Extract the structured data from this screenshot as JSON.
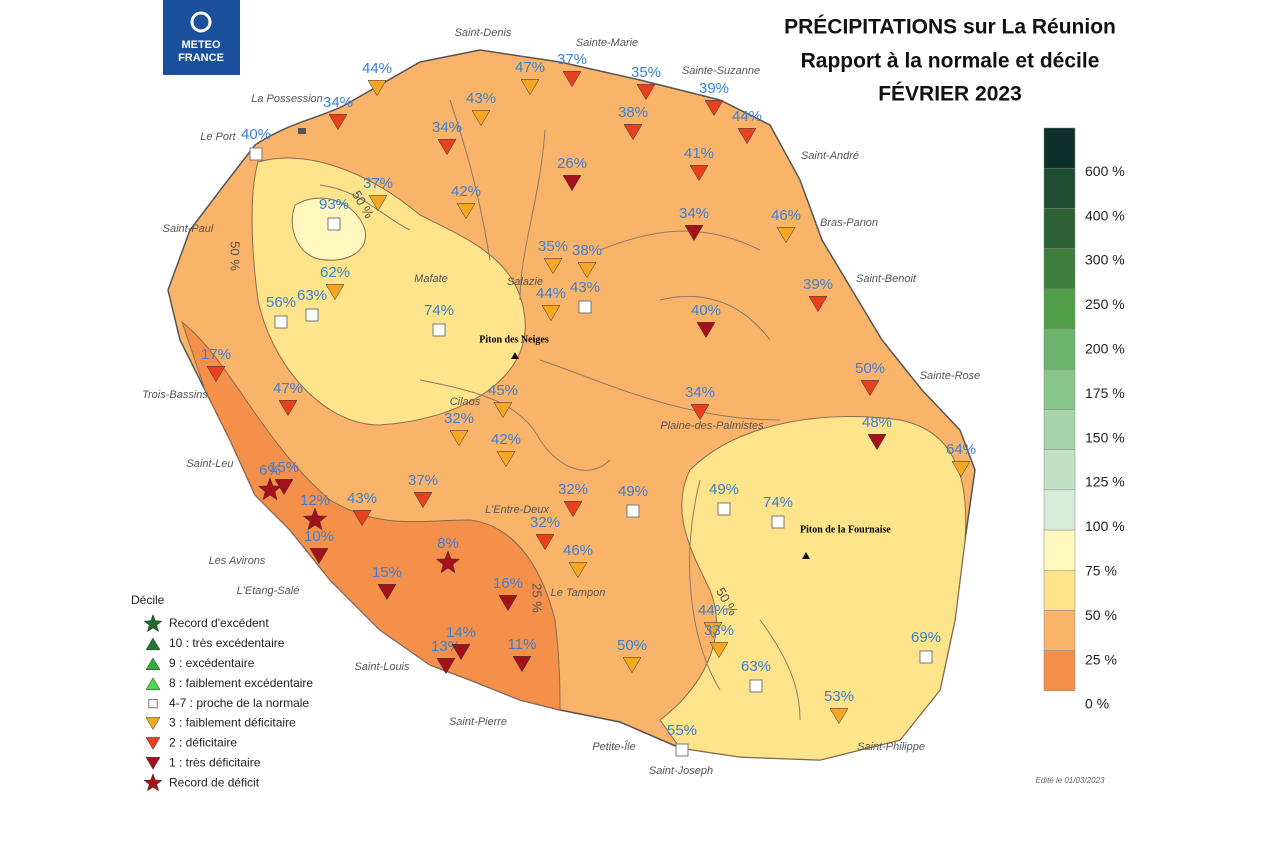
{
  "header": {
    "logo": [
      "METEO",
      "FRANCE"
    ],
    "title": [
      "PRÉCIPITATIONS sur La Réunion",
      "Rapport à la normale et décile",
      "FÉVRIER 2023"
    ]
  },
  "scale": {
    "colors": [
      "#f5904a",
      "#f9b46a",
      "#fde38a",
      "#fff7bd",
      "#d7ecd8",
      "#c0e2c2",
      "#a6d4a8",
      "#88c58b",
      "#6cb46c",
      "#4f9d47",
      "#3c7e3a",
      "#2c6234",
      "#1e4c30",
      "#0e2f2a"
    ],
    "labels": [
      "0 %",
      "25 %",
      "50 %",
      "75 %",
      "100 %",
      "125 %",
      "150 %",
      "175 %",
      "200 %",
      "250 %",
      "300 %",
      "400 %",
      "600 %"
    ]
  },
  "legend": {
    "title": "Décile",
    "items": [
      {
        "label": "Record d'excédent",
        "symbol": "star",
        "color": "#1e6b2a"
      },
      {
        "label": "10 : très excédentaire",
        "symbol": "up",
        "color": "#1e7a2e"
      },
      {
        "label": "9 : excédentaire",
        "symbol": "up",
        "color": "#2eae3a"
      },
      {
        "label": "8 : faiblement excédentaire",
        "symbol": "up",
        "color": "#4cd64a"
      },
      {
        "label": "4-7 : proche de la normale",
        "symbol": "square",
        "color": "#ffffff"
      },
      {
        "label": "3 : faiblement déficitaire",
        "symbol": "down",
        "color": "#f5a623"
      },
      {
        "label": "2 : déficitaire",
        "symbol": "down",
        "color": "#e8401c"
      },
      {
        "label": "1 : très déficitaire",
        "symbol": "down",
        "color": "#a3121a"
      },
      {
        "label": "Record de déficit",
        "symbol": "star",
        "color": "#a3121a"
      }
    ]
  },
  "places": [
    "Saint-Denis",
    "Sainte-Marie",
    "Sainte-Suzanne",
    "La Possession",
    "Le Port",
    "Saint-André",
    "Saint-Paul",
    "Bras-Panon",
    "Saint-Benoit",
    "Mafate",
    "Salazie",
    "Sainte-Rose",
    "Trois-Bassins",
    "Plaine-des-Palmistes",
    "Cilaos",
    "Saint-Leu",
    "L'Entre-Deux",
    "Les Avirons",
    "L'Etang-Salé",
    "Le Tampon",
    "Saint-Louis",
    "Saint-Pierre",
    "Petite-Île",
    "Saint-Joseph",
    "Saint-Philippe"
  ],
  "summits": [
    "Piton des Neiges",
    "Piton de la Fournaise"
  ],
  "contour_labels": [
    "50 %",
    "50 %",
    "25 %",
    "50 %"
  ],
  "stations": [
    {
      "label": "44%",
      "symbol": "down",
      "color": "#f5a623"
    },
    {
      "label": "34%",
      "symbol": "down",
      "color": "#e8401c"
    },
    {
      "label": "40%",
      "symbol": "square",
      "color": "#ffffff"
    },
    {
      "label": "43%",
      "symbol": "down",
      "color": "#f5a623"
    },
    {
      "label": "47%",
      "symbol": "down",
      "color": "#f5a623"
    },
    {
      "label": "37%",
      "symbol": "down",
      "color": "#e8401c"
    },
    {
      "label": "35%",
      "symbol": "down",
      "color": "#e8401c"
    },
    {
      "label": "39%",
      "symbol": "down",
      "color": "#e8401c"
    },
    {
      "label": "44%",
      "symbol": "down",
      "color": "#e8401c"
    },
    {
      "label": "38%",
      "symbol": "down",
      "color": "#e8401c"
    },
    {
      "label": "34%",
      "symbol": "down",
      "color": "#e8401c"
    },
    {
      "label": "26%",
      "symbol": "down",
      "color": "#a3121a"
    },
    {
      "label": "41%",
      "symbol": "down",
      "color": "#e8401c"
    },
    {
      "label": "37%",
      "symbol": "down",
      "color": "#f5a623"
    },
    {
      "label": "42%",
      "symbol": "down",
      "color": "#f5a623"
    },
    {
      "label": "93%",
      "symbol": "square",
      "color": "#ffffff"
    },
    {
      "label": "34%",
      "symbol": "down",
      "color": "#a3121a"
    },
    {
      "label": "46%",
      "symbol": "down",
      "color": "#f5a623"
    },
    {
      "label": "35%",
      "symbol": "down",
      "color": "#f5a623"
    },
    {
      "label": "38%",
      "symbol": "down",
      "color": "#f5a623"
    },
    {
      "label": "62%",
      "symbol": "down",
      "color": "#f5a623"
    },
    {
      "label": "44%",
      "symbol": "down",
      "color": "#f5a623"
    },
    {
      "label": "43%",
      "symbol": "square",
      "color": "#ffffff"
    },
    {
      "label": "56%",
      "symbol": "square",
      "color": "#ffffff"
    },
    {
      "label": "63%",
      "symbol": "square",
      "color": "#ffffff"
    },
    {
      "label": "74%",
      "symbol": "square",
      "color": "#ffffff"
    },
    {
      "label": "40%",
      "symbol": "down",
      "color": "#a3121a"
    },
    {
      "label": "39%",
      "symbol": "down",
      "color": "#e8401c"
    },
    {
      "label": "17%",
      "symbol": "down",
      "color": "#e8401c"
    },
    {
      "label": "47%",
      "symbol": "down",
      "color": "#e8401c"
    },
    {
      "label": "45%",
      "symbol": "down",
      "color": "#f5a623"
    },
    {
      "label": "34%",
      "symbol": "down",
      "color": "#e8401c"
    },
    {
      "label": "50%",
      "symbol": "down",
      "color": "#e8401c"
    },
    {
      "label": "32%",
      "symbol": "down",
      "color": "#f5a623"
    },
    {
      "label": "42%",
      "symbol": "down",
      "color": "#f5a623"
    },
    {
      "label": "48%",
      "symbol": "down",
      "color": "#a3121a"
    },
    {
      "label": "64%",
      "symbol": "down",
      "color": "#f5a623"
    },
    {
      "label": "6%",
      "symbol": "star",
      "color": "#a3121a"
    },
    {
      "label": "15%",
      "symbol": "down",
      "color": "#a3121a"
    },
    {
      "label": "12%",
      "symbol": "star",
      "color": "#a3121a"
    },
    {
      "label": "43%",
      "symbol": "down",
      "color": "#e8401c"
    },
    {
      "label": "37%",
      "symbol": "down",
      "color": "#e8401c"
    },
    {
      "label": "32%",
      "symbol": "down",
      "color": "#e8401c"
    },
    {
      "label": "49%",
      "symbol": "square",
      "color": "#ffffff"
    },
    {
      "label": "49%",
      "symbol": "square",
      "color": "#ffffff"
    },
    {
      "label": "74%",
      "symbol": "square",
      "color": "#ffffff"
    },
    {
      "label": "10%",
      "symbol": "down",
      "color": "#a3121a"
    },
    {
      "label": "8%",
      "symbol": "star",
      "color": "#a3121a"
    },
    {
      "label": "32%",
      "symbol": "down",
      "color": "#e8401c"
    },
    {
      "label": "46%",
      "symbol": "down",
      "color": "#f5a623"
    },
    {
      "label": "15%",
      "symbol": "down",
      "color": "#a3121a"
    },
    {
      "label": "16%",
      "symbol": "down",
      "color": "#a3121a"
    },
    {
      "label": "50%",
      "symbol": "down",
      "color": "#f5a623"
    },
    {
      "label": "44%",
      "symbol": "down",
      "color": "#f5a623"
    },
    {
      "label": "33%",
      "symbol": "down",
      "color": "#f5a623"
    },
    {
      "label": "13%",
      "symbol": "down",
      "color": "#a3121a"
    },
    {
      "label": "14%",
      "symbol": "down",
      "color": "#a3121a"
    },
    {
      "label": "11%",
      "symbol": "down",
      "color": "#a3121a"
    },
    {
      "label": "63%",
      "symbol": "square",
      "color": "#ffffff"
    },
    {
      "label": "69%",
      "symbol": "square",
      "color": "#ffffff"
    },
    {
      "label": "53%",
      "symbol": "down",
      "color": "#f5a623"
    },
    {
      "label": "55%",
      "symbol": "square",
      "color": "#ffffff"
    }
  ],
  "edition": "Edité le 01/03/2023"
}
